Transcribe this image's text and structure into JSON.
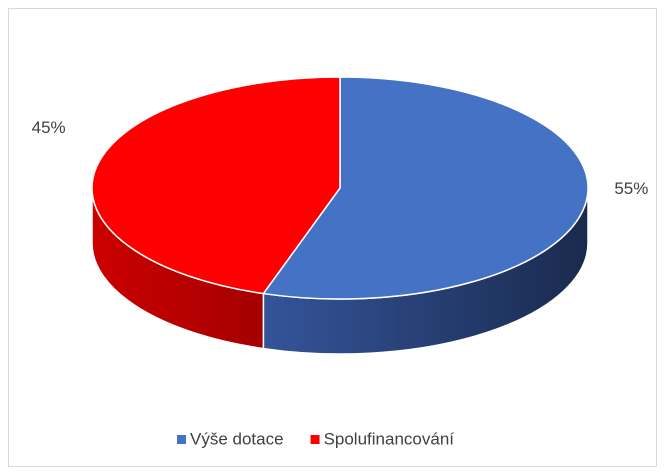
{
  "chart_data": {
    "type": "pie",
    "categories": [
      "Výše dotace",
      "Spolufinancování"
    ],
    "values": [
      55,
      45
    ],
    "value_labels": [
      "55%",
      "45%"
    ],
    "colors": [
      "#4472c4",
      "#ff0000"
    ],
    "legend": "bottom"
  }
}
